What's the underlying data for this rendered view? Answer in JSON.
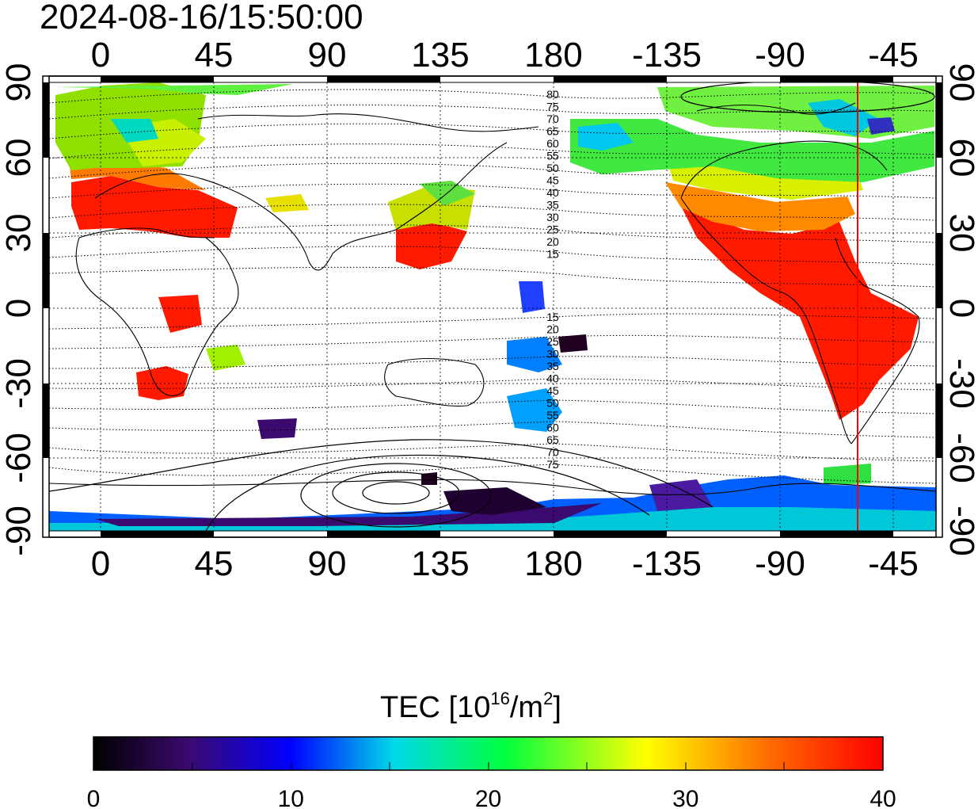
{
  "title": "2024-08-16/15:50:00",
  "map": {
    "x_ticks_top": [
      "0",
      "45",
      "90",
      "135",
      "180",
      "-135",
      "-90",
      "-45"
    ],
    "x_ticks_bottom": [
      "0",
      "45",
      "90",
      "135",
      "180",
      "-135",
      "-90",
      "-45"
    ],
    "y_ticks_left": [
      "90",
      "60",
      "30",
      "0",
      "-30",
      "-60",
      "-90"
    ],
    "y_ticks_right": [
      "90",
      "60",
      "30",
      "0",
      "-30",
      "-60",
      "-90"
    ],
    "contour_labels_north": [
      "80",
      "75",
      "70",
      "65",
      "60",
      "55",
      "50",
      "45",
      "40",
      "35",
      "30",
      "25",
      "20",
      "15"
    ],
    "contour_labels_south": [
      "15",
      "20",
      "25",
      "30",
      "35",
      "40",
      "45",
      "50",
      "55",
      "60",
      "65",
      "70",
      "75"
    ],
    "terminator_color": "#ff0000"
  },
  "colorbar": {
    "title_prefix": "TEC  [10",
    "title_exp": "16",
    "title_mid": "/m",
    "title_exp2": "2",
    "title_suffix": "]",
    "ticks": [
      "0",
      "10",
      "20",
      "30",
      "40"
    ],
    "min": 0,
    "max": 40,
    "colors": [
      "#000000",
      "#3a0a6e",
      "#0000ff",
      "#00e0e0",
      "#00ff00",
      "#ffff00",
      "#ff8000",
      "#ff0000"
    ]
  }
}
